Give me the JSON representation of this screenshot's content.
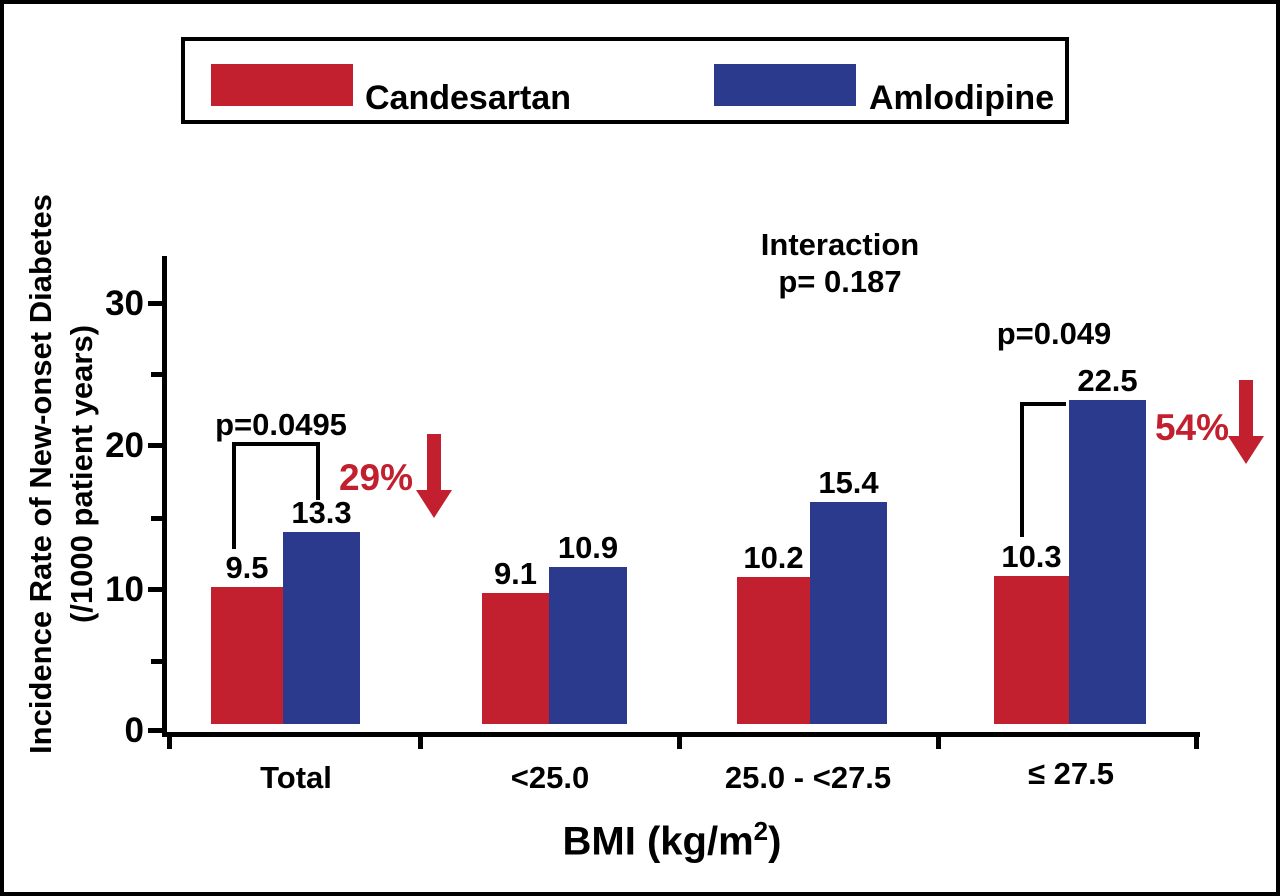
{
  "colors": {
    "candesartan": "#C2202F",
    "amlodipine": "#2C3A8E",
    "arrowred": "#C2202F",
    "axis": "#000000"
  },
  "legend": {
    "items": [
      {
        "label": "Candesartan",
        "color": "#C2202F"
      },
      {
        "label": "Amlodipine",
        "color": "#2C3A8E"
      }
    ]
  },
  "y_axis": {
    "title_line1": "Incidence Rate of New-onset Diabetes",
    "title_line2": "(/1000 patient years)",
    "tick_labels": [
      "30",
      "20",
      "10",
      "0"
    ],
    "minor_ticks": [
      25,
      15,
      5
    ],
    "max_value": 33
  },
  "x_axis": {
    "title_pre": "BMI (kg/m",
    "title_sup": "2",
    "title_post": ")"
  },
  "groups": [
    {
      "label": "Total",
      "candesartan": 9.5,
      "amlodipine": 13.3
    },
    {
      "label": "<25.0",
      "candesartan": 9.1,
      "amlodipine": 10.9
    },
    {
      "label": "25.0 - <27.5",
      "candesartan": 10.2,
      "amlodipine": 15.4
    },
    {
      "label": "≤ 27.5",
      "candesartan": 10.3,
      "amlodipine": 22.5
    }
  ],
  "annotations": {
    "interaction_line1": "Interaction",
    "interaction_line2": "p= 0.187",
    "total": {
      "p_value": "p=0.0495",
      "reduction": "29%"
    },
    "high_bmi": {
      "p_value": "p=0.049",
      "reduction": "54%"
    }
  },
  "chart_data": {
    "type": "bar",
    "categories": [
      "Total",
      "<25.0",
      "25.0 - <27.5",
      "≤ 27.5"
    ],
    "series": [
      {
        "name": "Candesartan",
        "color": "#C2202F",
        "values": [
          9.5,
          9.1,
          10.2,
          10.3
        ]
      },
      {
        "name": "Amlodipine",
        "color": "#2C3A8E",
        "values": [
          13.3,
          10.9,
          15.4,
          22.5
        ]
      }
    ],
    "title": "",
    "xlabel": "BMI (kg/m2)",
    "ylabel": "Incidence Rate of New-onset Diabetes (/1000 patient years)",
    "ylim": [
      0,
      33
    ],
    "yticks": [
      0,
      10,
      20,
      30
    ],
    "minor_yticks": [
      5,
      15,
      25
    ],
    "grid": false,
    "legend_position": "top",
    "annotations": [
      "Interaction p= 0.187",
      "Total: p=0.0495, 29% reduction (red down arrow)",
      "≤ 27.5: p=0.049, 54% reduction (red down arrow)"
    ]
  }
}
